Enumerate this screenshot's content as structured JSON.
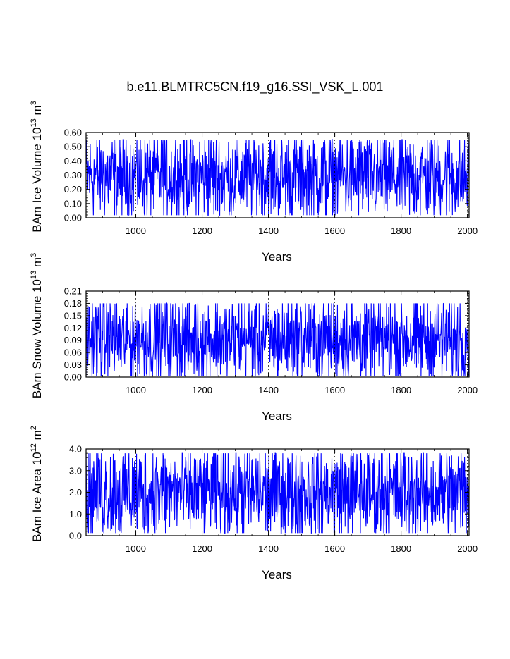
{
  "title": "b.e11.BLMTRC5CN.f19_g16.SSI_VSK_L.001",
  "colors": {
    "series": "#0000ff",
    "axis": "#000000",
    "grid": "#000000"
  },
  "chart_data": [
    {
      "type": "line",
      "ylabel": "BAm Ice Volume 10",
      "ylabel_sup": "13",
      "ylabel_unit": "m",
      "ylabel_unit_sup": "3",
      "xlabel": "Years",
      "xlim": [
        850,
        2005
      ],
      "ylim": [
        0.0,
        0.6
      ],
      "x_ticks": [
        "1000",
        "1200",
        "1400",
        "1600",
        "1800",
        "2000"
      ],
      "y_ticks": [
        "0.00",
        "0.10",
        "0.20",
        "0.30",
        "0.40",
        "0.50",
        "0.60"
      ],
      "x_grid": true,
      "series": [
        {
          "x_start": 850,
          "x_end": 2005,
          "typical_min": 0.03,
          "typical_max": 0.55,
          "mean": 0.26
        }
      ]
    },
    {
      "type": "line",
      "ylabel": "BAm Snow Volume 10",
      "ylabel_sup": "13",
      "ylabel_unit": "m",
      "ylabel_unit_sup": "3",
      "xlabel": "Years",
      "xlim": [
        850,
        2005
      ],
      "ylim": [
        0.0,
        0.21
      ],
      "x_ticks": [
        "1000",
        "1200",
        "1400",
        "1600",
        "1800",
        "2000"
      ],
      "y_ticks": [
        "0.00",
        "0.03",
        "0.06",
        "0.09",
        "0.12",
        "0.15",
        "0.18",
        "0.21"
      ],
      "x_grid": true,
      "series": [
        {
          "x_start": 850,
          "x_end": 2005,
          "typical_min": 0.005,
          "typical_max": 0.18,
          "mean": 0.075
        }
      ]
    },
    {
      "type": "line",
      "ylabel": "BAm Ice Area 10",
      "ylabel_sup": "12",
      "ylabel_unit": "m",
      "ylabel_unit_sup": "2",
      "xlabel": "Years",
      "xlim": [
        850,
        2005
      ],
      "ylim": [
        0.0,
        4.0
      ],
      "x_ticks": [
        "1000",
        "1200",
        "1400",
        "1600",
        "1800",
        "2000"
      ],
      "y_ticks": [
        "0.0",
        "1.0",
        "2.0",
        "3.0",
        "4.0"
      ],
      "x_grid": true,
      "series": [
        {
          "x_start": 850,
          "x_end": 2005,
          "typical_min": 0.2,
          "typical_max": 3.8,
          "mean": 1.6
        }
      ]
    }
  ]
}
